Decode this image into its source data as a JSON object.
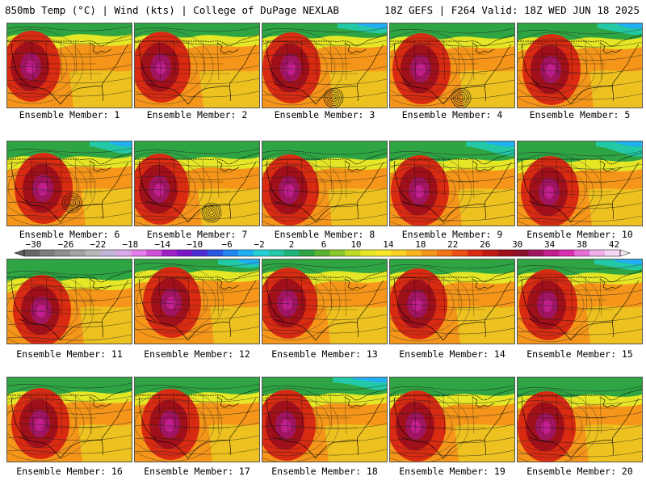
{
  "header": {
    "left": "850mb Temp (°C) | Wind (kts) | College of DuPage NEXLAB",
    "right": "18Z GEFS | F264 Valid: 18Z WED JUN 18 2025"
  },
  "colorbar": {
    "labels": [
      "−30",
      "−26",
      "−22",
      "−18",
      "−14",
      "−10",
      "−6",
      "−2",
      "2",
      "6",
      "10",
      "14",
      "18",
      "22",
      "26",
      "30",
      "34",
      "38",
      "42"
    ],
    "colors": [
      "#686868",
      "#7c7c7c",
      "#8e8e8e",
      "#a3a3a3",
      "#b7b7b7",
      "#c4b6d6",
      "#d9a9e8",
      "#e67fe9",
      "#cf4fd6",
      "#a020c8",
      "#7a18c8",
      "#4b2fd2",
      "#2b58e2",
      "#1f86f0",
      "#22aef2",
      "#25cfd6",
      "#23c9a6",
      "#1fb57a",
      "#2ea443",
      "#58b332",
      "#8ac92b",
      "#bddb27",
      "#e5e726",
      "#f8e829",
      "#fbd224",
      "#f9b41e",
      "#f5961a",
      "#f27417",
      "#ea4f14",
      "#d92b12",
      "#c11912",
      "#a0101a",
      "#8c0f2c",
      "#a01560",
      "#c21e8e",
      "#d92fb0",
      "#e66fd4",
      "#eeb0e8",
      "#f3d6f1"
    ]
  },
  "panel_colors": {
    "north_green": "#2ea443",
    "teal": "#23c9a6",
    "blue": "#22aef2",
    "yellow": "#e5e726",
    "orange": "#f5961a",
    "red": "#d92b12",
    "dark_red": "#a0101a",
    "purple": "#a01560",
    "magenta": "#c21e8e"
  },
  "members": [
    {
      "label": "Ensemble Member: 1"
    },
    {
      "label": "Ensemble Member: 2"
    },
    {
      "label": "Ensemble Member: 3"
    },
    {
      "label": "Ensemble Member: 4"
    },
    {
      "label": "Ensemble Member: 5"
    },
    {
      "label": "Ensemble Member: 6"
    },
    {
      "label": "Ensemble Member: 7"
    },
    {
      "label": "Ensemble Member: 8"
    },
    {
      "label": "Ensemble Member: 9"
    },
    {
      "label": "Ensemble Member: 10"
    },
    {
      "label": "Ensemble Member: 11"
    },
    {
      "label": "Ensemble Member: 12"
    },
    {
      "label": "Ensemble Member: 13"
    },
    {
      "label": "Ensemble Member: 14"
    },
    {
      "label": "Ensemble Member: 15"
    },
    {
      "label": "Ensemble Member: 16"
    },
    {
      "label": "Ensemble Member: 17"
    },
    {
      "label": "Ensemble Member: 18"
    },
    {
      "label": "Ensemble Member: 19"
    },
    {
      "label": "Ensemble Member: 20"
    }
  ]
}
